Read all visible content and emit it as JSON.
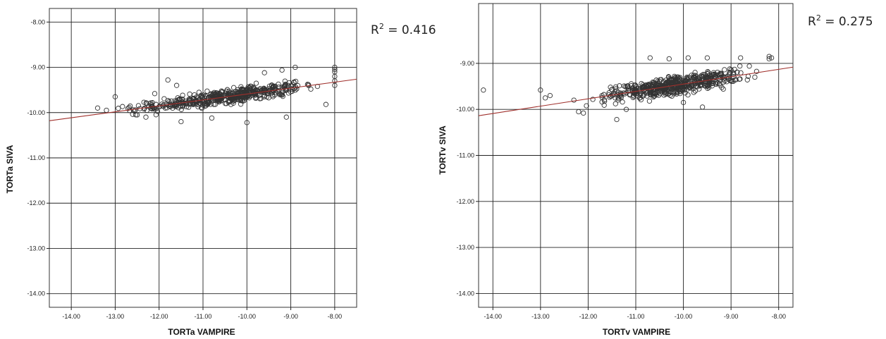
{
  "chart_data": [
    {
      "type": "scatter",
      "title": "",
      "xlabel": "TORTa VAMPIRE",
      "ylabel": "TORTa SIVA",
      "xlim": [
        -14.5,
        -7.5
      ],
      "ylim": [
        -14.3,
        -7.7
      ],
      "x_ticks": [
        -14,
        -13,
        -12,
        -11,
        -10,
        -9,
        -8
      ],
      "x_tick_labels": [
        "-14.00",
        "-13.00",
        "-12.00",
        "-11.00",
        "-10.00",
        "-9.00",
        "-8.00"
      ],
      "y_ticks": [
        -8,
        -9,
        -10,
        -11,
        -12,
        -13,
        -14
      ],
      "y_tick_labels": [
        "-8.00",
        "-9.00",
        "-10.00",
        "-11.00",
        "-12.00",
        "-13.00",
        "-14.00"
      ],
      "grid": true,
      "r2_prefix": "R",
      "r2_sup": "2",
      "r2_suffix": " = 0.416",
      "fit_line": {
        "slope": 0.131,
        "intercept": -8.28,
        "color": "#a0302c"
      },
      "cloud": {
        "x_min": -13.4,
        "x_max": -8.0,
        "slope": 0.131,
        "intercept": -8.28,
        "spread": 0.16,
        "n": 520,
        "seed": 11,
        "x_mode": -10.3
      },
      "points": [
        [
          -13.0,
          -9.65
        ],
        [
          -12.1,
          -9.58
        ],
        [
          -11.8,
          -9.28
        ],
        [
          -11.6,
          -9.4
        ],
        [
          -9.6,
          -9.12
        ],
        [
          -9.2,
          -9.06
        ],
        [
          -8.9,
          -9.0
        ],
        [
          -8.0,
          -9.0
        ],
        [
          -8.0,
          -9.05
        ],
        [
          -8.0,
          -9.1
        ],
        [
          -8.0,
          -9.2
        ],
        [
          -8.0,
          -9.3
        ],
        [
          -8.0,
          -9.4
        ],
        [
          -11.5,
          -10.2
        ],
        [
          -10.0,
          -10.22
        ],
        [
          -9.1,
          -10.1
        ],
        [
          -8.2,
          -9.82
        ],
        [
          -13.4,
          -9.9
        ],
        [
          -13.2,
          -9.95
        ],
        [
          -12.5,
          -10.05
        ],
        [
          -12.3,
          -10.1
        ],
        [
          -10.8,
          -10.12
        ]
      ],
      "marker_color": "#333333"
    },
    {
      "type": "scatter",
      "title": "",
      "xlabel": "TORTv VAMPIRE",
      "ylabel": "TORTv SIVA",
      "xlim": [
        -14.3,
        -7.7
      ],
      "ylim": [
        -14.3,
        -7.7
      ],
      "x_ticks": [
        -14,
        -13,
        -12,
        -11,
        -10,
        -9,
        -8
      ],
      "x_tick_labels": [
        "-14.00",
        "-13.00",
        "-12.00",
        "-11.00",
        "-10.00",
        "-9.00",
        "-8.00"
      ],
      "y_ticks": [
        -9,
        -10,
        -11,
        -12,
        -13,
        -14
      ],
      "y_tick_labels": [
        "-9.00",
        "-10.00",
        "-11.00",
        "-12.00",
        "-13.00",
        "-14.00"
      ],
      "grid": true,
      "r2_prefix": "R",
      "r2_sup": "2",
      "r2_suffix": " = 0.275",
      "fit_line": {
        "slope": 0.16,
        "intercept": -7.85,
        "color": "#a0302c"
      },
      "cloud": {
        "x_min": -12.2,
        "x_max": -8.2,
        "slope": 0.16,
        "intercept": -7.85,
        "spread": 0.2,
        "n": 560,
        "seed": 29,
        "x_mode": -10.2
      },
      "points": [
        [
          -14.2,
          -9.58
        ],
        [
          -13.0,
          -9.58
        ],
        [
          -12.9,
          -9.75
        ],
        [
          -12.8,
          -9.7
        ],
        [
          -12.2,
          -10.05
        ],
        [
          -12.1,
          -10.08
        ],
        [
          -12.3,
          -9.8
        ],
        [
          -11.4,
          -10.22
        ],
        [
          -11.2,
          -10.0
        ],
        [
          -10.7,
          -8.88
        ],
        [
          -10.3,
          -8.9
        ],
        [
          -9.9,
          -8.88
        ],
        [
          -9.5,
          -8.88
        ],
        [
          -8.8,
          -8.88
        ],
        [
          -8.2,
          -8.85
        ],
        [
          -8.2,
          -8.9
        ],
        [
          -8.15,
          -8.88
        ],
        [
          -9.2,
          -9.25
        ],
        [
          -8.5,
          -9.3
        ],
        [
          -9.6,
          -9.95
        ],
        [
          -10.0,
          -9.85
        ]
      ],
      "marker_color": "#333333"
    }
  ]
}
